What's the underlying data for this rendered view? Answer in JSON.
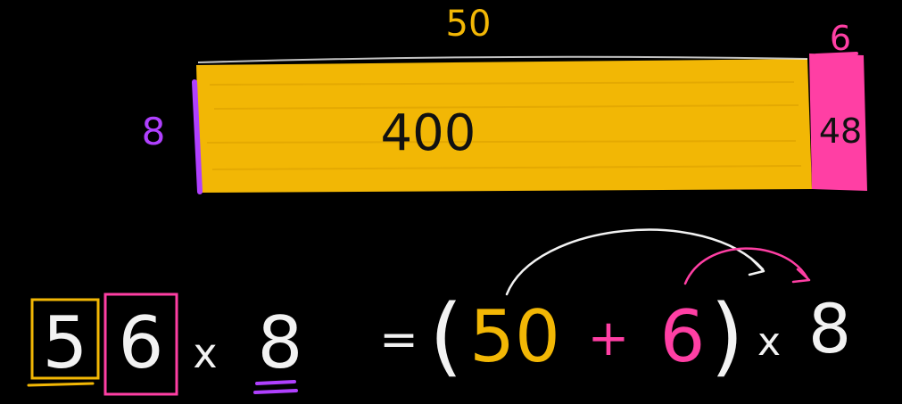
{
  "colors": {
    "background": "#000000",
    "yellow": "#f2b705",
    "pink": "#ff3fa4",
    "purple": "#b040ff",
    "white": "#f2f2f2",
    "ink": "#111111"
  },
  "area_model": {
    "top_long": "50",
    "top_short": "6",
    "side": "8",
    "big_area": "400",
    "small_area": "48"
  },
  "equation": {
    "digit_tens": "5",
    "digit_ones": "6",
    "times1": "x",
    "factor": "8",
    "equals": "=",
    "open_paren": "(",
    "term1": "50",
    "plus": "+",
    "term2": "6",
    "close_paren": ")",
    "times2": "x",
    "factor2": "8"
  }
}
